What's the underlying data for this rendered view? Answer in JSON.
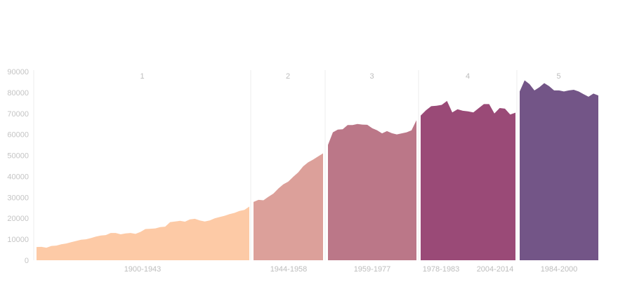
{
  "chart_data": {
    "type": "area",
    "ylim": [
      0,
      90000
    ],
    "yticks": [
      0,
      10000,
      20000,
      30000,
      40000,
      50000,
      60000,
      70000,
      80000,
      90000
    ],
    "grid": false,
    "legend": "none",
    "panels": [
      {
        "title": "1",
        "color": "#fdcaa6",
        "x_labels": [
          "1900-1943"
        ],
        "values": [
          6300,
          6400,
          6000,
          6800,
          7000,
          7600,
          8000,
          8600,
          9200,
          9800,
          10000,
          10600,
          11300,
          11800,
          12000,
          13000,
          13000,
          12400,
          12800,
          13000,
          12600,
          13500,
          14900,
          15000,
          15200,
          15800,
          16000,
          18200,
          18500,
          18800,
          18400,
          19500,
          19800,
          19000,
          18500,
          19000,
          20000,
          20600,
          21200,
          22000,
          22600,
          23500,
          24000,
          25600
        ]
      },
      {
        "title": "2",
        "color": "#dca09a",
        "x_labels": [
          "1944-1958"
        ],
        "values": [
          27800,
          28800,
          28600,
          30300,
          31800,
          34200,
          36200,
          37500,
          39800,
          41900,
          44800,
          46700,
          48000,
          49500,
          51000
        ]
      },
      {
        "title": "3",
        "color": "#bb7788",
        "x_labels": [
          "1959-1977"
        ],
        "values": [
          55000,
          61000,
          62300,
          62500,
          64500,
          64500,
          65000,
          64700,
          64600,
          63000,
          62000,
          60500,
          61600,
          60600,
          60000,
          60500,
          61000,
          62000,
          66800
        ]
      },
      {
        "title": "4",
        "color": "#9a4a77",
        "x_labels": [
          "1978-1983",
          "2004-2014"
        ],
        "values": [
          69000,
          71500,
          73500,
          73700,
          74100,
          76000,
          70500,
          72000,
          71300,
          71000,
          70500,
          72500,
          74500,
          74500,
          70000,
          72600,
          72300,
          69500,
          70400
        ]
      },
      {
        "title": "5",
        "color": "#735587",
        "x_labels": [
          "1984-2000"
        ],
        "values": [
          80500,
          85800,
          84000,
          81000,
          82500,
          84500,
          83000,
          81000,
          81000,
          80500,
          81000,
          81300,
          80500,
          79200,
          78000,
          79500,
          78600
        ]
      }
    ]
  }
}
